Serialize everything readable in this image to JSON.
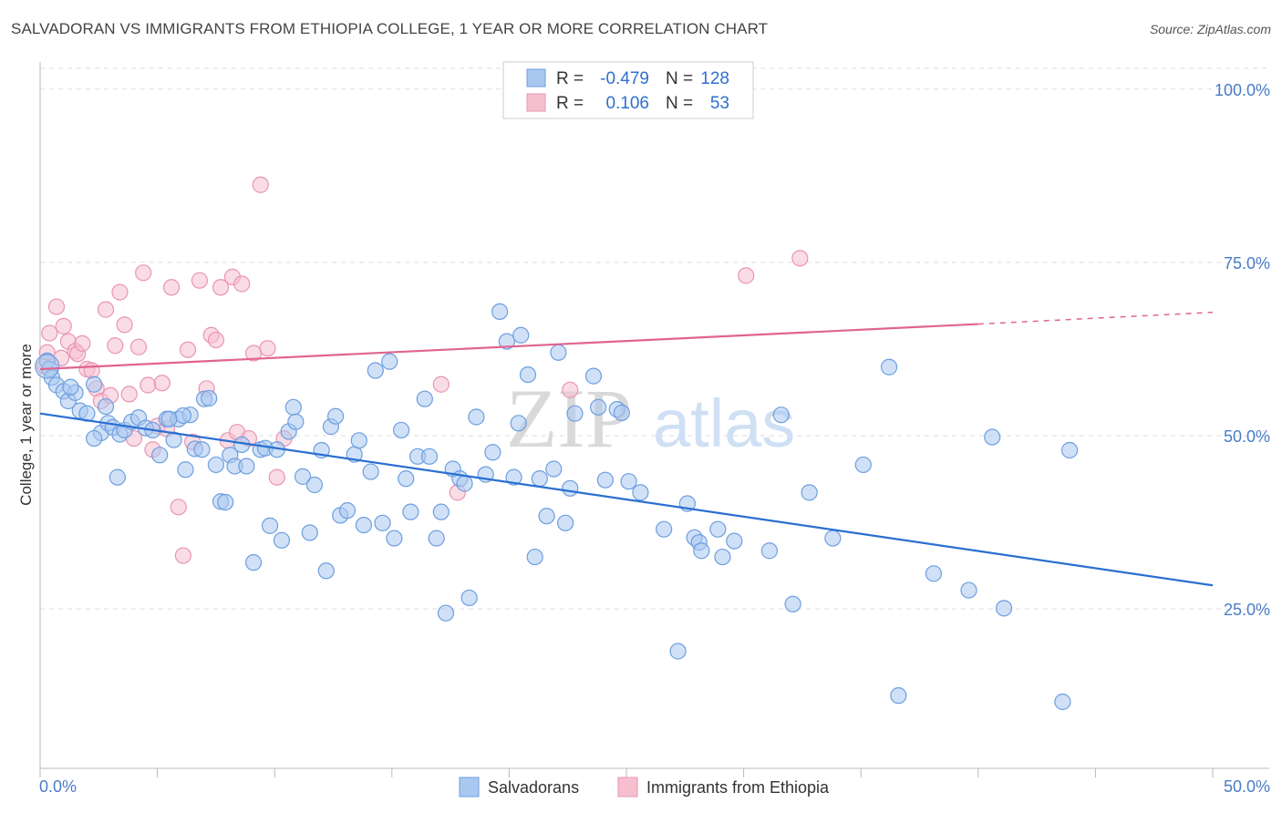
{
  "title": "SALVADORAN VS IMMIGRANTS FROM ETHIOPIA COLLEGE, 1 YEAR OR MORE CORRELATION CHART",
  "source": "Source: ZipAtlas.com",
  "watermark": {
    "zip": "ZIP",
    "atlas": "atlas"
  },
  "colors": {
    "blue_fill": "#a9c8f0",
    "blue_stroke": "#6d9ee0",
    "blue_line": "#2a6fd1",
    "pink_fill": "#f6bfd0",
    "pink_stroke": "#e995b1",
    "pink_line": "#e0648f",
    "grid": "#dddddd",
    "tick_label": "#4a7cc9"
  },
  "legend": {
    "rows": [
      {
        "r_label": "R =",
        "r_value": "-0.479",
        "n_label": "N =",
        "n_value": "128"
      },
      {
        "r_label": "R =",
        "r_value": "0.106",
        "n_label": "N =",
        "n_value": "53"
      }
    ]
  },
  "chart_data": {
    "type": "scatter",
    "title": "SALVADORAN VS IMMIGRANTS FROM ETHIOPIA COLLEGE, 1 YEAR OR MORE CORRELATION CHART",
    "xlabel": "",
    "ylabel": "College, 1 year or more",
    "xlim": [
      0,
      50
    ],
    "ylim": [
      2,
      103
    ],
    "x_tick_labels": [
      "0.0%",
      "50.0%"
    ],
    "y_ticks": [
      25,
      50,
      75,
      100
    ],
    "y_tick_labels": [
      "25.0%",
      "50.0%",
      "75.0%",
      "100.0%"
    ],
    "grid": true,
    "legend_position": "top-center",
    "series": [
      {
        "name": "Salvadorans",
        "r": -0.479,
        "n": 128,
        "trend": {
          "x": [
            0,
            50
          ],
          "y": [
            53.2,
            28.4
          ]
        },
        "points": [
          [
            0.3,
            60.8
          ],
          [
            0.4,
            59.6
          ],
          [
            0.5,
            58.4
          ],
          [
            0.7,
            57.3
          ],
          [
            1.0,
            56.4
          ],
          [
            1.2,
            55.0
          ],
          [
            1.5,
            56.2
          ],
          [
            1.7,
            53.6
          ],
          [
            2.0,
            53.2
          ],
          [
            2.3,
            57.4
          ],
          [
            2.6,
            50.4
          ],
          [
            2.9,
            51.8
          ],
          [
            3.1,
            51.2
          ],
          [
            3.4,
            50.2
          ],
          [
            3.6,
            50.8
          ],
          [
            3.9,
            52.0
          ],
          [
            2.3,
            49.6
          ],
          [
            4.2,
            52.6
          ],
          [
            4.5,
            51.1
          ],
          [
            4.8,
            50.8
          ],
          [
            5.1,
            47.2
          ],
          [
            5.4,
            52.4
          ],
          [
            5.7,
            49.4
          ],
          [
            5.9,
            52.4
          ],
          [
            6.2,
            45.1
          ],
          [
            6.4,
            53.0
          ],
          [
            6.6,
            48.1
          ],
          [
            6.9,
            48.0
          ],
          [
            7.0,
            55.3
          ],
          [
            7.2,
            55.4
          ],
          [
            7.5,
            45.8
          ],
          [
            7.7,
            40.5
          ],
          [
            7.9,
            40.4
          ],
          [
            8.1,
            47.2
          ],
          [
            8.3,
            45.6
          ],
          [
            8.6,
            48.7
          ],
          [
            8.8,
            45.6
          ],
          [
            9.1,
            31.7
          ],
          [
            9.4,
            48.0
          ],
          [
            9.6,
            48.2
          ],
          [
            9.8,
            37.0
          ],
          [
            10.1,
            48.0
          ],
          [
            10.3,
            34.9
          ],
          [
            10.6,
            50.6
          ],
          [
            10.8,
            54.1
          ],
          [
            10.9,
            52.0
          ],
          [
            11.2,
            44.1
          ],
          [
            11.5,
            36.0
          ],
          [
            11.7,
            42.9
          ],
          [
            12.0,
            47.9
          ],
          [
            12.2,
            30.5
          ],
          [
            12.4,
            51.3
          ],
          [
            12.6,
            52.8
          ],
          [
            12.8,
            38.5
          ],
          [
            13.1,
            39.2
          ],
          [
            13.4,
            47.3
          ],
          [
            13.6,
            49.3
          ],
          [
            13.8,
            37.1
          ],
          [
            14.1,
            44.8
          ],
          [
            14.3,
            59.4
          ],
          [
            14.6,
            37.4
          ],
          [
            14.9,
            60.7
          ],
          [
            15.1,
            35.2
          ],
          [
            15.4,
            50.8
          ],
          [
            15.6,
            43.8
          ],
          [
            15.8,
            39.0
          ],
          [
            16.1,
            47.0
          ],
          [
            16.4,
            55.3
          ],
          [
            16.6,
            47.0
          ],
          [
            16.9,
            35.2
          ],
          [
            17.1,
            39.0
          ],
          [
            17.3,
            24.4
          ],
          [
            17.6,
            45.2
          ],
          [
            17.9,
            43.8
          ],
          [
            18.1,
            43.1
          ],
          [
            18.3,
            26.6
          ],
          [
            18.6,
            52.7
          ],
          [
            19.0,
            44.4
          ],
          [
            19.3,
            47.6
          ],
          [
            19.6,
            67.9
          ],
          [
            19.9,
            63.6
          ],
          [
            20.2,
            44.0
          ],
          [
            20.5,
            64.5
          ],
          [
            20.4,
            51.8
          ],
          [
            20.8,
            58.8
          ],
          [
            21.1,
            32.5
          ],
          [
            21.3,
            43.8
          ],
          [
            21.6,
            38.4
          ],
          [
            21.9,
            45.2
          ],
          [
            22.1,
            62.0
          ],
          [
            22.4,
            37.4
          ],
          [
            22.6,
            42.4
          ],
          [
            22.8,
            53.2
          ],
          [
            23.6,
            58.6
          ],
          [
            23.8,
            54.1
          ],
          [
            24.1,
            43.6
          ],
          [
            24.6,
            53.8
          ],
          [
            24.8,
            53.3
          ],
          [
            25.1,
            43.4
          ],
          [
            25.6,
            41.8
          ],
          [
            26.6,
            36.5
          ],
          [
            27.2,
            18.9
          ],
          [
            27.6,
            40.2
          ],
          [
            27.9,
            35.3
          ],
          [
            28.1,
            34.6
          ],
          [
            28.2,
            33.4
          ],
          [
            28.9,
            36.5
          ],
          [
            29.1,
            32.5
          ],
          [
            29.6,
            34.8
          ],
          [
            31.1,
            33.4
          ],
          [
            31.6,
            53.0
          ],
          [
            32.1,
            25.7
          ],
          [
            32.8,
            41.8
          ],
          [
            33.8,
            35.2
          ],
          [
            35.1,
            45.8
          ],
          [
            36.2,
            59.9
          ],
          [
            36.6,
            12.5
          ],
          [
            38.1,
            30.1
          ],
          [
            39.6,
            27.7
          ],
          [
            40.6,
            49.8
          ],
          [
            41.1,
            25.1
          ],
          [
            43.6,
            11.6
          ],
          [
            43.9,
            47.9
          ],
          [
            1.3,
            57.0
          ],
          [
            2.8,
            54.2
          ],
          [
            6.1,
            52.9
          ],
          [
            3.3,
            44.0
          ],
          [
            5.5,
            52.4
          ]
        ]
      },
      {
        "name": "Immigrants from Ethiopia",
        "r": 0.106,
        "n": 53,
        "trend": {
          "x": [
            0,
            40
          ],
          "y": [
            59.6,
            66.1
          ]
        },
        "trend_dashed": {
          "x": [
            40,
            50
          ],
          "y": [
            66.1,
            67.8
          ]
        },
        "points": [
          [
            0.2,
            60.0
          ],
          [
            0.3,
            62.0
          ],
          [
            0.4,
            64.8
          ],
          [
            0.7,
            68.6
          ],
          [
            1.0,
            65.8
          ],
          [
            1.2,
            63.6
          ],
          [
            1.5,
            62.2
          ],
          [
            1.6,
            61.8
          ],
          [
            1.8,
            63.3
          ],
          [
            2.0,
            59.6
          ],
          [
            2.2,
            59.4
          ],
          [
            2.4,
            56.8
          ],
          [
            2.6,
            55.0
          ],
          [
            2.8,
            68.2
          ],
          [
            3.0,
            55.8
          ],
          [
            3.2,
            63.0
          ],
          [
            3.4,
            70.7
          ],
          [
            3.6,
            66.0
          ],
          [
            3.8,
            56.0
          ],
          [
            4.0,
            49.6
          ],
          [
            4.2,
            62.8
          ],
          [
            4.4,
            73.5
          ],
          [
            4.6,
            57.3
          ],
          [
            4.8,
            48.0
          ],
          [
            5.0,
            51.4
          ],
          [
            5.2,
            57.6
          ],
          [
            5.4,
            51.0
          ],
          [
            5.6,
            71.4
          ],
          [
            5.9,
            39.7
          ],
          [
            6.1,
            32.7
          ],
          [
            6.3,
            62.4
          ],
          [
            6.5,
            49.1
          ],
          [
            6.8,
            72.4
          ],
          [
            7.1,
            56.8
          ],
          [
            7.3,
            64.5
          ],
          [
            7.5,
            63.8
          ],
          [
            7.7,
            71.4
          ],
          [
            8.0,
            49.3
          ],
          [
            8.2,
            72.9
          ],
          [
            8.4,
            50.5
          ],
          [
            8.6,
            71.9
          ],
          [
            8.9,
            49.6
          ],
          [
            9.1,
            61.9
          ],
          [
            9.4,
            86.2
          ],
          [
            9.7,
            62.6
          ],
          [
            10.1,
            44.0
          ],
          [
            10.4,
            49.6
          ],
          [
            17.1,
            57.4
          ],
          [
            17.8,
            41.8
          ],
          [
            22.6,
            56.6
          ],
          [
            30.1,
            73.1
          ],
          [
            32.4,
            75.6
          ],
          [
            0.9,
            61.2
          ]
        ]
      }
    ]
  },
  "bottom_legend": {
    "items": [
      "Salvadorans",
      "Immigrants from Ethiopia"
    ]
  }
}
